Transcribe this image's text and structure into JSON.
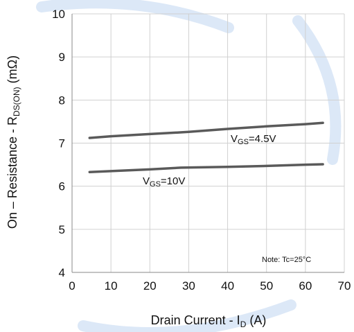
{
  "chart_data": {
    "type": "line",
    "title": "",
    "xlabel": {
      "main": "Drain Current - I",
      "sub": "D",
      "tail": " (A)"
    },
    "ylabel": {
      "main": "On – Resistance - R",
      "sub": "DS(ON)",
      "tail": " (mΩ)"
    },
    "xlim": [
      0,
      70
    ],
    "ylim": [
      4,
      10
    ],
    "xticks": [
      "0",
      "10",
      "20",
      "30",
      "40",
      "50",
      "60",
      "70"
    ],
    "yticks": [
      "4",
      "5",
      "6",
      "7",
      "8",
      "9",
      "10"
    ],
    "grid": true,
    "series_color": "#5a5a5a",
    "grid_color": "#d0d0d0",
    "watermark_color": "#dce8f7",
    "series": [
      {
        "label": {
          "main": "V",
          "sub": "GS",
          "tail": "=4.5V"
        },
        "points": [
          [
            4.5,
            7.12
          ],
          [
            10,
            7.16
          ],
          [
            20,
            7.21
          ],
          [
            30,
            7.26
          ],
          [
            40,
            7.33
          ],
          [
            50,
            7.39
          ],
          [
            60,
            7.44
          ],
          [
            64.5,
            7.47
          ]
        ]
      },
      {
        "label": {
          "main": "V",
          "sub": "GS",
          "tail": "=10V"
        },
        "points": [
          [
            4.5,
            6.33
          ],
          [
            10,
            6.35
          ],
          [
            20,
            6.39
          ],
          [
            28,
            6.43
          ],
          [
            40,
            6.45
          ],
          [
            50,
            6.47
          ],
          [
            60,
            6.5
          ],
          [
            64.5,
            6.51
          ]
        ]
      }
    ],
    "note": "Note: Tc=25°C"
  }
}
